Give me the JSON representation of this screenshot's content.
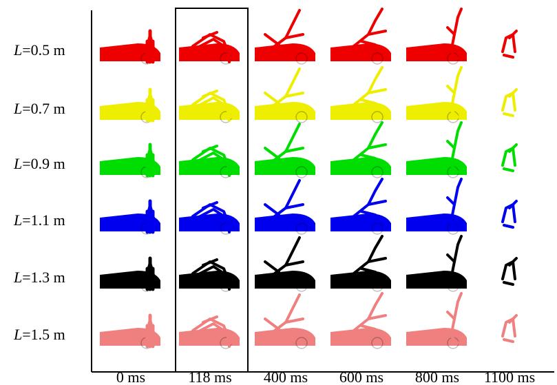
{
  "rows": [
    {
      "variable": "L",
      "value": "=0.5 m",
      "color": "#ee0000"
    },
    {
      "variable": "L",
      "value": "=0.7 m",
      "color": "#eeee00"
    },
    {
      "variable": "L",
      "value": "=0.9 m",
      "color": "#00dd00"
    },
    {
      "variable": "L",
      "value": "=1.1 m",
      "color": "#0000ee"
    },
    {
      "variable": "L",
      "value": "=1.3 m",
      "color": "#000000"
    },
    {
      "variable": "L",
      "value": "=1.5 m",
      "color": "#f08080"
    }
  ],
  "columns": [
    "0 ms",
    "118 ms",
    "400 ms",
    "600 ms",
    "800 ms",
    "1100 ms"
  ]
}
